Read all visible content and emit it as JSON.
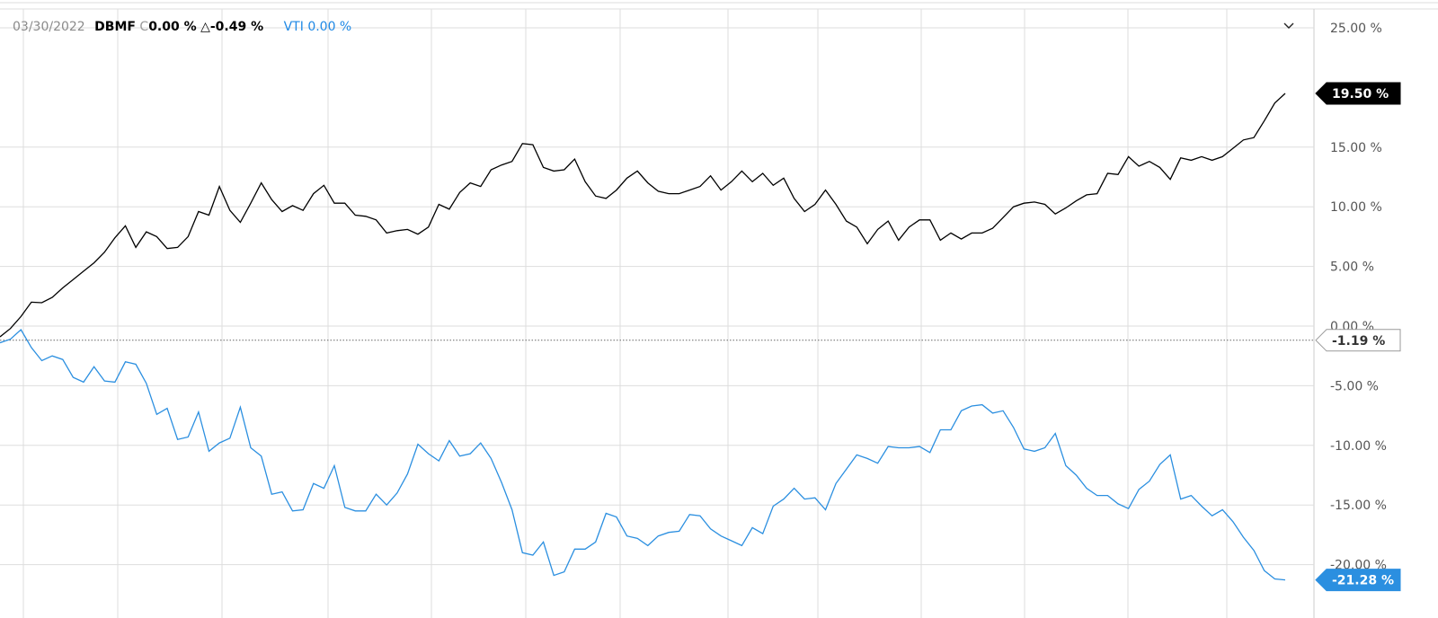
{
  "legend": {
    "date": "03/30/2022",
    "primary_symbol": "DBMF",
    "primary_change_prefix": "C",
    "primary_change": "0.00 %",
    "primary_delta_prefix": "△",
    "primary_delta": "-0.49 %",
    "compare_symbol": "VTI",
    "compare_change": "0.00 %"
  },
  "collapse_icon": "chevron-down-icon",
  "colors": {
    "DBMF": "#000000",
    "VTI": "#2b8fe0",
    "grid": "#dddddd"
  },
  "chart_data": {
    "type": "line",
    "ylim": [
      -22,
      26
    ],
    "yticks": [
      "25.00 %",
      "15.00 %",
      "10.00 %",
      "5.00 %",
      "0.00 %",
      "-5.00 %",
      "-10.00 %",
      "-15.00 %",
      "-20.00 %"
    ],
    "ytick_values": [
      25,
      15,
      10,
      5,
      0,
      -5,
      -10,
      -15,
      -20
    ],
    "grid": true,
    "reference_line": {
      "value": -1.19,
      "label": "-1.19 %"
    },
    "series": [
      {
        "name": "DBMF",
        "last_label": "19.50 %",
        "values": [
          -0.9,
          -0.2,
          0.8,
          2.0,
          1.96,
          2.4,
          3.2,
          3.9,
          4.6,
          5.3,
          6.2,
          7.4,
          8.4,
          6.6,
          7.9,
          7.5,
          6.5,
          6.6,
          7.5,
          9.6,
          9.3,
          11.7,
          9.7,
          8.7,
          10.3,
          12.0,
          10.6,
          9.6,
          10.1,
          9.7,
          11.1,
          11.8,
          10.3,
          10.3,
          9.3,
          9.2,
          8.9,
          7.8,
          8.0,
          8.1,
          7.7,
          8.3,
          10.2,
          9.8,
          11.2,
          12.0,
          11.7,
          13.1,
          13.5,
          13.8,
          15.3,
          15.2,
          13.3,
          13.0,
          13.1,
          14.0,
          12.1,
          10.9,
          10.7,
          11.4,
          12.4,
          13.0,
          12.0,
          11.3,
          11.1,
          11.1,
          11.4,
          11.7,
          12.6,
          11.4,
          12.1,
          13.0,
          12.1,
          12.8,
          11.8,
          12.4,
          10.7,
          9.6,
          10.2,
          11.4,
          10.2,
          8.8,
          8.3,
          6.9,
          8.1,
          8.8,
          7.2,
          8.3,
          8.9,
          8.9,
          7.2,
          7.8,
          7.3,
          7.8,
          7.8,
          8.2,
          9.1,
          10.0,
          10.3,
          10.4,
          10.2,
          9.4,
          9.9,
          10.5,
          11.0,
          11.1,
          12.8,
          12.7,
          14.2,
          13.4,
          13.8,
          13.3,
          12.3,
          14.1,
          13.9,
          14.2,
          13.9,
          14.2,
          14.9,
          15.6,
          15.8,
          17.2,
          18.7,
          19.5
        ]
      },
      {
        "name": "VTI",
        "last_label": "-21.28 %",
        "values": [
          -1.4,
          -1.1,
          -0.3,
          -1.8,
          -2.9,
          -2.5,
          -2.8,
          -4.3,
          -4.7,
          -3.4,
          -4.6,
          -4.7,
          -3.0,
          -3.2,
          -4.8,
          -7.4,
          -6.9,
          -9.5,
          -9.3,
          -7.2,
          -10.5,
          -9.8,
          -9.4,
          -6.8,
          -10.2,
          -10.9,
          -14.1,
          -13.9,
          -15.5,
          -15.4,
          -13.2,
          -13.6,
          -11.7,
          -15.2,
          -15.5,
          -15.5,
          -14.1,
          -15.0,
          -14.0,
          -12.4,
          -9.9,
          -10.7,
          -11.3,
          -9.6,
          -10.9,
          -10.7,
          -9.8,
          -11.1,
          -13.1,
          -15.4,
          -19.0,
          -19.2,
          -18.1,
          -20.9,
          -20.6,
          -18.7,
          -18.7,
          -18.1,
          -15.7,
          -16.0,
          -17.6,
          -17.8,
          -18.4,
          -17.6,
          -17.3,
          -17.2,
          -15.8,
          -15.9,
          -17.0,
          -17.6,
          -18.0,
          -18.4,
          -16.9,
          -17.4,
          -15.1,
          -14.5,
          -13.6,
          -14.5,
          -14.4,
          -15.4,
          -13.2,
          -12.0,
          -10.8,
          -11.1,
          -11.5,
          -10.1,
          -10.2,
          -10.2,
          -10.1,
          -10.6,
          -8.7,
          -8.7,
          -7.1,
          -6.7,
          -6.6,
          -7.3,
          -7.1,
          -8.5,
          -10.3,
          -10.5,
          -10.2,
          -9.0,
          -11.7,
          -12.5,
          -13.6,
          -14.2,
          -14.2,
          -14.9,
          -15.3,
          -13.7,
          -13.0,
          -11.6,
          -10.8,
          -14.5,
          -14.2,
          -15.1,
          -15.9,
          -15.4,
          -16.4,
          -17.7,
          -18.8,
          -20.5,
          -21.2,
          -21.28
        ]
      }
    ]
  }
}
